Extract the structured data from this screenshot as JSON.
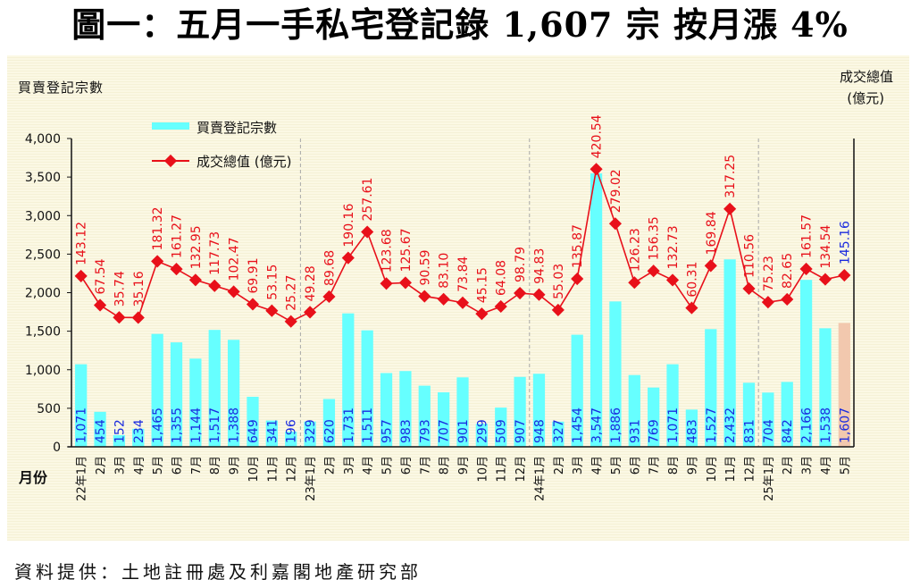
{
  "title": "圖一：五月一手私宅登記錄 1,607 宗  按月漲 4%",
  "source": "資料提供：土地註冊處及利嘉閣地產研究部",
  "chart_data": {
    "type": "bar+line",
    "title": "圖一：五月一手私宅登記錄 1,607 宗  按月漲 4%",
    "xlabel": "月份",
    "ylabel": "買賣登記宗數",
    "y2label_line1": "成交總值",
    "y2label_line2": "(億元)",
    "ylim": [
      0,
      4000
    ],
    "y2lim": [
      -300,
      500
    ],
    "yticks": [
      "0",
      "500",
      "1,000",
      "1,500",
      "2,000",
      "2,500",
      "3,000",
      "3,500",
      "4,000"
    ],
    "yticks_values": [
      0,
      500,
      1000,
      1500,
      2000,
      2500,
      3000,
      3500,
      4000
    ],
    "grid": false,
    "legend_position": "top-left",
    "legend": [
      {
        "name": "買賣登記宗數",
        "type": "bar",
        "color": "#66ffff"
      },
      {
        "name": "成交總值 (億元)",
        "type": "line",
        "color": "#e8101a"
      }
    ],
    "categories": [
      "22年1月",
      "2月",
      "3月",
      "4月",
      "5月",
      "6月",
      "7月",
      "8月",
      "9月",
      "10月",
      "11月",
      "12月",
      "23年1月",
      "2月",
      "3月",
      "4月",
      "5月",
      "6月",
      "7月",
      "8月",
      "9月",
      "10月",
      "11月",
      "12月",
      "24年1月",
      "2月",
      "3月",
      "4月",
      "5月",
      "6月",
      "7月",
      "8月",
      "9月",
      "10月",
      "11月",
      "12月",
      "25年1月",
      "2月",
      "3月",
      "4月",
      "5月"
    ],
    "year_dividers_before_index": [
      12,
      24,
      36
    ],
    "series": [
      {
        "name": "買賣登記宗數",
        "type": "bar",
        "axis": "left",
        "color": "#66ffff",
        "highlight_last_color": "#f2c8ae",
        "label_color": "#1a2adf",
        "values": [
          1071,
          454,
          152,
          234,
          1465,
          1355,
          1144,
          1517,
          1388,
          649,
          341,
          196,
          329,
          620,
          1731,
          1511,
          957,
          983,
          793,
          707,
          901,
          299,
          509,
          907,
          948,
          327,
          1454,
          3547,
          1886,
          931,
          769,
          1071,
          483,
          1527,
          2432,
          831,
          704,
          842,
          2166,
          1538,
          1607
        ],
        "labels": [
          "1,071",
          "454",
          "152",
          "234",
          "1,465",
          "1,355",
          "1,144",
          "1,517",
          "1,388",
          "649",
          "341",
          "196",
          "329",
          "620",
          "1,731",
          "1,511",
          "957",
          "983",
          "793",
          "707",
          "901",
          "299",
          "509",
          "907",
          "948",
          "327",
          "1,454",
          "3,547",
          "1,886",
          "931",
          "769",
          "1,071",
          "483",
          "1,527",
          "2,432",
          "831",
          "704",
          "842",
          "2,166",
          "1,538",
          "1,607"
        ]
      },
      {
        "name": "成交總值 (億元)",
        "type": "line",
        "axis": "right",
        "color": "#e8101a",
        "label_color": "#e8101a",
        "highlight_last_label_color": "#1a2adf",
        "values": [
          143.12,
          67.54,
          35.74,
          35.16,
          181.32,
          161.27,
          132.95,
          117.73,
          102.47,
          69.91,
          53.15,
          25.27,
          49.28,
          89.68,
          190.16,
          257.61,
          123.68,
          125.67,
          90.59,
          83.1,
          73.84,
          45.15,
          64.08,
          98.79,
          94.83,
          55.03,
          135.87,
          420.54,
          279.02,
          126.23,
          156.35,
          132.73,
          60.31,
          169.84,
          317.25,
          110.56,
          75.23,
          82.65,
          161.57,
          134.54,
          145.16
        ],
        "labels": [
          "143.12",
          "67.54",
          "35.74",
          "35.16",
          "181.32",
          "161.27",
          "132.95",
          "117.73",
          "102.47",
          "69.91",
          "53.15",
          "25.27",
          "49.28",
          "89.68",
          "190.16",
          "257.61",
          "123.68",
          "125.67",
          "90.59",
          "83.10",
          "73.84",
          "45.15",
          "64.08",
          "98.79",
          "94.83",
          "55.03",
          "135.87",
          "420.54",
          "279.02",
          "126.23",
          "156.35",
          "132.73",
          "60.31",
          "169.84",
          "317.25",
          "110.56",
          "75.23",
          "82.65",
          "161.57",
          "134.54",
          "145.16"
        ]
      }
    ]
  }
}
